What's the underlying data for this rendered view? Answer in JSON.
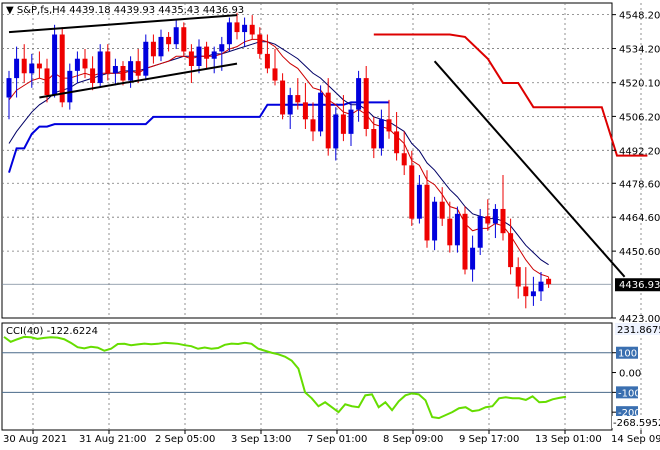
{
  "header": {
    "symbol": "S&P,fs,H4",
    "ohlc": "4439.18 4439.93 4435.43 4436.93"
  },
  "cci_header": {
    "label": "CCI(40)",
    "value": "-122.6224"
  },
  "price_badge": "4436.93",
  "cci_badges": {
    "top": "231.8675",
    "bottom": "-268.5952"
  },
  "colors": {
    "bull": "#0000dd",
    "bear": "#ee0000",
    "ma_fast": "#cc0000",
    "ma_slow": "#000066",
    "upper_band": "#dd0000",
    "lower_band": "#0000dd",
    "cci": "#66dd00",
    "level_line": "#4a6a8a",
    "grid": "#777777"
  },
  "chart_data": [
    {
      "type": "candlestick",
      "ylim": [
        4423.0,
        4553.0
      ],
      "y_ticks": [
        "4548.20",
        "4534.20",
        "4520.10",
        "4506.20",
        "4492.20",
        "4478.60",
        "4464.60",
        "4450.60",
        "4423.00"
      ],
      "x_labels": [
        "30 Aug 2021",
        "31 Aug 21:00",
        "2 Sep 05:00",
        "3 Sep 13:00",
        "7 Sep 01:00",
        "8 Sep 09:00",
        "9 Sep 17:00",
        "13 Sep 01:00",
        "14 Sep 09:00"
      ],
      "x_label_index": [
        0,
        10,
        20,
        30,
        40,
        50,
        60,
        70,
        80
      ],
      "last_price": 4436.93,
      "candles": [
        [
          4514,
          4525,
          4505,
          4522
        ],
        [
          4522,
          4535,
          4514,
          4530
        ],
        [
          4530,
          4536,
          4520,
          4524
        ],
        [
          4524,
          4532,
          4518,
          4528
        ],
        [
          4528,
          4533,
          4522,
          4526
        ],
        [
          4526,
          4530,
          4512,
          4515
        ],
        [
          4515,
          4544,
          4514,
          4540
        ],
        [
          4540,
          4543,
          4510,
          4512
        ],
        [
          4512,
          4528,
          4509,
          4525
        ],
        [
          4525,
          4533,
          4520,
          4530
        ],
        [
          4530,
          4534,
          4522,
          4526
        ],
        [
          4526,
          4531,
          4517,
          4520
        ],
        [
          4520,
          4536,
          4518,
          4533
        ],
        [
          4533,
          4536,
          4521,
          4524
        ],
        [
          4524,
          4530,
          4519,
          4527
        ],
        [
          4527,
          4529,
          4519,
          4521
        ],
        [
          4521,
          4531,
          4518,
          4529
        ],
        [
          4529,
          4534,
          4520,
          4523
        ],
        [
          4523,
          4540,
          4521,
          4537
        ],
        [
          4537,
          4540,
          4528,
          4531
        ],
        [
          4531,
          4542,
          4529,
          4539
        ],
        [
          4539,
          4541,
          4533,
          4536
        ],
        [
          4536,
          4546,
          4534,
          4543
        ],
        [
          4543,
          4545,
          4531,
          4533
        ],
        [
          4533,
          4536,
          4520,
          4527
        ],
        [
          4527,
          4538,
          4524,
          4535
        ],
        [
          4535,
          4537,
          4526,
          4530
        ],
        [
          4530,
          4535,
          4524,
          4533
        ],
        [
          4533,
          4539,
          4525,
          4536
        ],
        [
          4536,
          4547,
          4533,
          4545
        ],
        [
          4545,
          4549,
          4538,
          4541
        ],
        [
          4541,
          4547,
          4535,
          4544
        ],
        [
          4544,
          4548,
          4538,
          4540
        ],
        [
          4540,
          4543,
          4530,
          4532
        ],
        [
          4532,
          4540,
          4524,
          4526
        ],
        [
          4526,
          4534,
          4519,
          4521
        ],
        [
          4521,
          4524,
          4505,
          4507
        ],
        [
          4507,
          4518,
          4501,
          4515
        ],
        [
          4515,
          4522,
          4509,
          4512
        ],
        [
          4512,
          4520,
          4501,
          4505
        ],
        [
          4505,
          4512,
          4496,
          4500
        ],
        [
          4500,
          4519,
          4498,
          4516
        ],
        [
          4516,
          4522,
          4490,
          4493
        ],
        [
          4493,
          4510,
          4488,
          4507
        ],
        [
          4507,
          4515,
          4496,
          4499
        ],
        [
          4499,
          4512,
          4494,
          4509
        ],
        [
          4509,
          4525,
          4504,
          4522
        ],
        [
          4522,
          4527,
          4498,
          4501
        ],
        [
          4501,
          4506,
          4489,
          4493
        ],
        [
          4493,
          4509,
          4490,
          4505
        ],
        [
          4505,
          4513,
          4497,
          4500
        ],
        [
          4500,
          4508,
          4488,
          4491
        ],
        [
          4491,
          4500,
          4482,
          4486
        ],
        [
          4486,
          4492,
          4461,
          4464
        ],
        [
          4464,
          4482,
          4462,
          4478
        ],
        [
          4478,
          4484,
          4452,
          4455
        ],
        [
          4455,
          4473,
          4451,
          4471
        ],
        [
          4471,
          4477,
          4461,
          4464
        ],
        [
          4464,
          4471,
          4450,
          4453
        ],
        [
          4453,
          4469,
          4450,
          4466
        ],
        [
          4466,
          4469,
          4441,
          4443
        ],
        [
          4443,
          4457,
          4438,
          4452
        ],
        [
          4452,
          4468,
          4449,
          4465
        ],
        [
          4465,
          4472,
          4459,
          4462
        ],
        [
          4462,
          4470,
          4456,
          4468
        ],
        [
          4468,
          4482,
          4455,
          4458
        ],
        [
          4458,
          4464,
          4441,
          4444
        ],
        [
          4444,
          4448,
          4431,
          4436
        ],
        [
          4436,
          4444,
          4427,
          4432
        ],
        [
          4432,
          4440,
          4428,
          4434
        ],
        [
          4434,
          4442,
          4430,
          4438
        ],
        [
          4439.18,
          4439.93,
          4435.43,
          4436.93
        ]
      ],
      "ma_fast": [
        4513,
        4517,
        4519,
        4521,
        4522,
        4521,
        4524,
        4522,
        4522,
        4523,
        4524,
        4523,
        4524,
        4524,
        4524,
        4524,
        4525,
        4524,
        4526,
        4527,
        4528,
        4529,
        4531,
        4531,
        4530,
        4531,
        4531,
        4531,
        4532,
        4534,
        4535,
        4537,
        4538,
        4538,
        4537,
        4535,
        4531,
        4528,
        4526,
        4522,
        4518,
        4517,
        4513,
        4511,
        4508,
        4507,
        4509,
        4507,
        4503,
        4502,
        4501,
        4498,
        4495,
        4488,
        4486,
        4480,
        4478,
        4474,
        4469,
        4468,
        4462,
        4459,
        4460,
        4460,
        4462,
        4461,
        4457,
        4452,
        4447,
        4443,
        4441,
        4440
      ],
      "ma_slow": [
        4495,
        4500,
        4504,
        4508,
        4511,
        4513,
        4516,
        4517,
        4518,
        4520,
        4521,
        4522,
        4523,
        4524,
        4524,
        4525,
        4525,
        4525,
        4526,
        4527,
        4528,
        4529,
        4530,
        4531,
        4531,
        4531,
        4531,
        4532,
        4532,
        4533,
        4534,
        4535,
        4536,
        4537,
        4537,
        4536,
        4534,
        4532,
        4530,
        4527,
        4524,
        4522,
        4519,
        4516,
        4513,
        4511,
        4511,
        4509,
        4506,
        4505,
        4504,
        4502,
        4500,
        4495,
        4492,
        4487,
        4484,
        4480,
        4476,
        4473,
        4469,
        4466,
        4465,
        4464,
        4464,
        4463,
        4461,
        4457,
        4453,
        4450,
        4447,
        4445
      ],
      "upper_band": [
        [
          48,
          4540
        ],
        [
          58,
          4540
        ],
        [
          60,
          4539
        ],
        [
          63,
          4530
        ],
        [
          65,
          4520
        ],
        [
          67,
          4520
        ],
        [
          69,
          4510
        ],
        [
          78,
          4510
        ],
        [
          80,
          4490
        ],
        [
          84,
          4490
        ]
      ],
      "lower_band": [
        [
          0,
          4483
        ],
        [
          1,
          4493
        ],
        [
          2,
          4493
        ],
        [
          3,
          4499
        ],
        [
          4,
          4502
        ],
        [
          5,
          4502
        ],
        [
          6,
          4503
        ],
        [
          18,
          4503
        ],
        [
          19,
          4506
        ],
        [
          20,
          4506
        ],
        [
          33,
          4506
        ],
        [
          34,
          4511
        ],
        [
          35,
          4511
        ],
        [
          44,
          4511
        ],
        [
          45,
          4512
        ],
        [
          50,
          4512
        ]
      ],
      "trendlines": [
        {
          "from": [
            0,
            4541
          ],
          "to": [
            30,
            4548
          ]
        },
        {
          "from": [
            4,
            4514
          ],
          "to": [
            30,
            4528
          ]
        },
        {
          "from": [
            56,
            4529
          ],
          "to": [
            81,
            4440
          ]
        }
      ]
    },
    {
      "type": "line",
      "title": "CCI(40)",
      "ylim": [
        -290,
        250
      ],
      "y_ticks": [
        "100",
        "0.00",
        "-100",
        "-200"
      ],
      "levels": [
        100,
        -100
      ],
      "values": [
        180,
        155,
        168,
        180,
        178,
        170,
        175,
        178,
        176,
        168,
        150,
        128,
        122,
        130,
        126,
        110,
        120,
        144,
        145,
        138,
        142,
        146,
        143,
        145,
        150,
        148,
        145,
        138,
        133,
        120,
        126,
        120,
        124,
        140,
        146,
        144,
        150,
        145,
        120,
        110,
        100,
        92,
        80,
        60,
        20,
        -100,
        -130,
        -170,
        -150,
        -175,
        -200,
        -160,
        -170,
        -175,
        -115,
        -110,
        -175,
        -150,
        -190,
        -145,
        -115,
        -105,
        -110,
        -140,
        -225,
        -230,
        -215,
        -200,
        -180,
        -175,
        -195,
        -190,
        -175,
        -170,
        -130,
        -125,
        -130,
        -130,
        -138,
        -120,
        -150,
        -148,
        -135,
        -128,
        -122
      ]
    }
  ]
}
